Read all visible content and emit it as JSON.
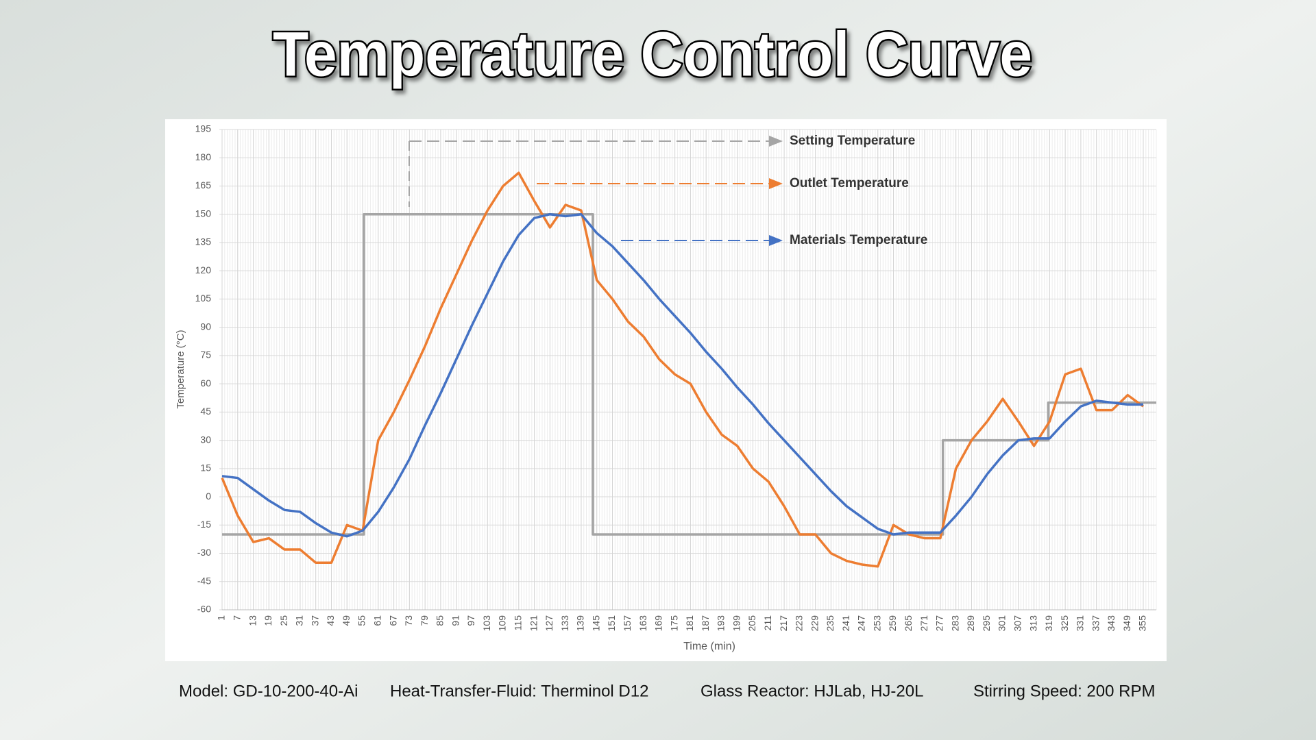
{
  "title": "Temperature Control Curve",
  "chart_data": {
    "type": "line",
    "ylabel": "Temperature (°C)",
    "xlabel": "Time (min)",
    "x": [
      1,
      7,
      13,
      19,
      25,
      31,
      37,
      43,
      49,
      55,
      61,
      67,
      73,
      79,
      85,
      91,
      97,
      103,
      109,
      115,
      121,
      127,
      133,
      139,
      145,
      151,
      157,
      163,
      169,
      175,
      181,
      187,
      193,
      199,
      205,
      211,
      217,
      223,
      229,
      235,
      241,
      247,
      253,
      259,
      265,
      271,
      277,
      283,
      289,
      295,
      301,
      307,
      313,
      319,
      325,
      331,
      337,
      343,
      349,
      355
    ],
    "xlim": [
      1,
      360
    ],
    "xticks": [
      1,
      7,
      13,
      19,
      25,
      31,
      37,
      43,
      49,
      55,
      61,
      67,
      73,
      79,
      85,
      91,
      97,
      103,
      109,
      115,
      121,
      127,
      133,
      139,
      145,
      151,
      157,
      163,
      169,
      175,
      181,
      187,
      193,
      199,
      205,
      211,
      217,
      223,
      229,
      235,
      241,
      247,
      253,
      259,
      265,
      271,
      277,
      283,
      289,
      295,
      301,
      307,
      313,
      319,
      325,
      331,
      337,
      343,
      349,
      355
    ],
    "ylim": [
      -60,
      195
    ],
    "yticks": [
      -60,
      -45,
      -30,
      -15,
      0,
      15,
      30,
      45,
      60,
      75,
      90,
      105,
      120,
      135,
      150,
      165,
      180,
      195
    ],
    "grid": true,
    "series": [
      {
        "name": "Setting Temperature",
        "color": "#a5a5a5",
        "x": [
          1,
          55.5,
          55.5,
          143.5,
          143.5,
          278,
          278,
          318.5,
          318.5,
          360
        ],
        "values": [
          -20,
          -20,
          150,
          150,
          -20,
          -20,
          30,
          30,
          50,
          50
        ]
      },
      {
        "name": "Outlet Temperature",
        "color": "#ed7d31",
        "values": [
          10,
          -10,
          -24,
          -22,
          -28,
          -28,
          -35,
          -35,
          -15,
          -18,
          30,
          45,
          62,
          80,
          100,
          118,
          136,
          152,
          165,
          172,
          157,
          143,
          155,
          152,
          115,
          105,
          93,
          85,
          73,
          65,
          60,
          45,
          33,
          27,
          15,
          8,
          -5,
          -20,
          -20,
          -30,
          -34,
          -36,
          -37,
          -15,
          -20,
          -22,
          -22,
          15,
          30,
          40,
          52,
          40,
          27,
          40,
          65,
          68,
          46,
          46,
          54,
          48
        ]
      },
      {
        "name": "Materials Temperature",
        "color": "#4472c4",
        "values": [
          11,
          10,
          4,
          -2,
          -7,
          -8,
          -14,
          -19,
          -21,
          -18,
          -8,
          5,
          20,
          38,
          55,
          73,
          91,
          108,
          125,
          139,
          148,
          150,
          149,
          150,
          140,
          133,
          124,
          115,
          105,
          96,
          87,
          77,
          68,
          58,
          49,
          39,
          30,
          21,
          12,
          3,
          -5,
          -11,
          -17,
          -20,
          -19,
          -19,
          -19,
          -10,
          0,
          12,
          22,
          30,
          31,
          31,
          40,
          48,
          51,
          50,
          49,
          49
        ]
      }
    ]
  },
  "footer": [
    "Model: GD-10-200-40-Ai",
    "Heat-Transfer-Fluid: Therminol D12",
    "Glass Reactor: HJLab, HJ-20L",
    "Stirring Speed: 200 RPM"
  ]
}
